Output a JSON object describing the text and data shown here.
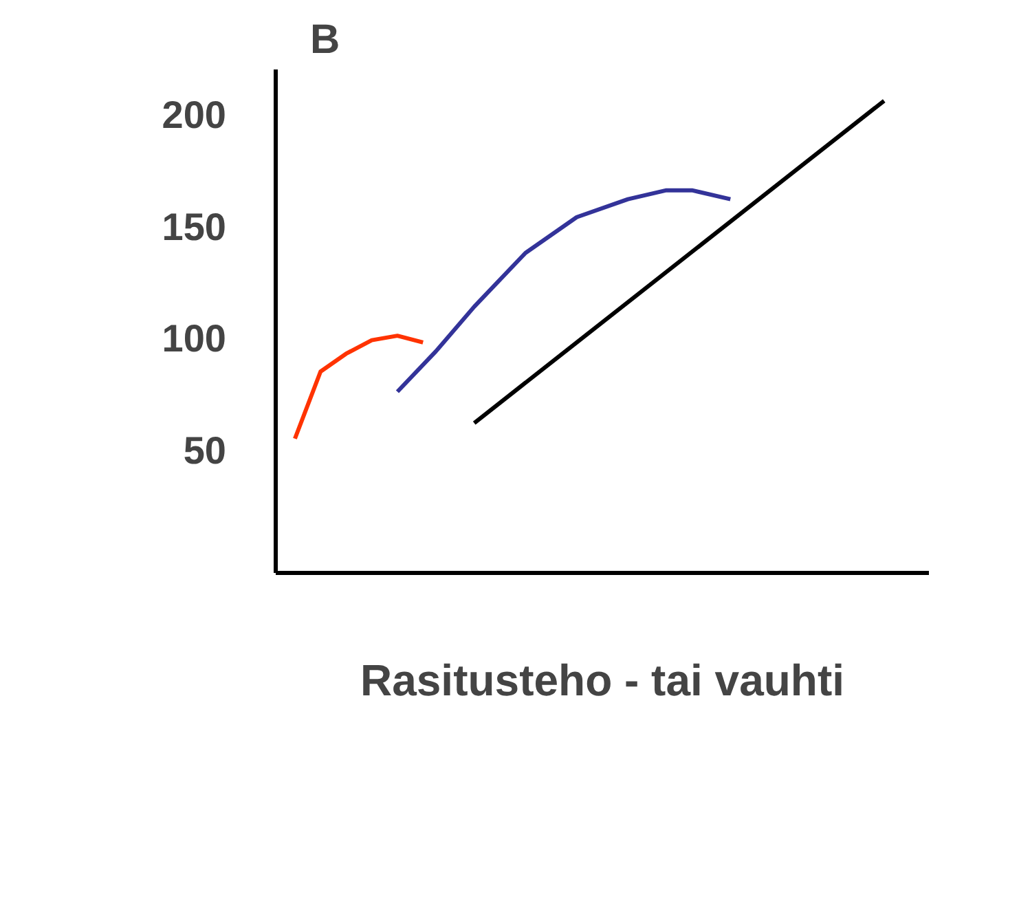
{
  "chart_data": {
    "type": "line",
    "title": "B",
    "xlabel": "Rasitusteho - tai vauhti",
    "ylim": [
      -5,
      220
    ],
    "yticks": [
      50,
      100,
      150,
      200
    ],
    "tick_labels": "y",
    "grid": false,
    "categories": [
      null,
      null,
      null,
      null,
      null,
      null,
      null,
      null,
      null,
      null,
      null,
      null,
      null,
      null,
      null,
      null,
      null,
      null,
      null,
      null,
      null,
      null,
      null,
      null,
      null,
      null,
      null,
      null,
      null,
      null,
      null,
      null,
      null,
      null,
      null,
      null,
      null,
      null,
      null,
      null,
      null,
      null,
      null,
      null,
      null,
      null,
      null,
      null,
      null,
      null,
      null
    ],
    "series": [
      {
        "color": "#ff3300",
        "values": [
          null,
          55,
          null,
          85,
          null,
          93,
          null,
          99,
          null,
          101,
          null,
          98,
          null,
          null,
          null,
          null,
          null,
          null,
          null,
          null,
          null,
          null,
          null,
          null,
          null,
          null,
          null,
          null,
          null,
          null,
          null,
          null,
          null,
          null,
          null,
          null,
          null,
          null,
          null,
          null,
          null,
          null,
          null,
          null,
          null,
          null,
          null,
          null,
          null,
          null,
          null
        ]
      },
      {
        "color": "#333399",
        "values": [
          null,
          null,
          null,
          null,
          null,
          null,
          null,
          null,
          null,
          76,
          null,
          null,
          94,
          null,
          null,
          114,
          null,
          null,
          null,
          138,
          null,
          null,
          null,
          154,
          null,
          null,
          null,
          162,
          null,
          null,
          166,
          null,
          166,
          null,
          null,
          162,
          null,
          null,
          null,
          null,
          null,
          null,
          null,
          null,
          null,
          null,
          null,
          null,
          null,
          null,
          null
        ]
      },
      {
        "color": "#000000",
        "values": [
          null,
          null,
          null,
          null,
          null,
          null,
          null,
          null,
          null,
          null,
          null,
          null,
          null,
          null,
          null,
          62,
          null,
          null,
          null,
          null,
          null,
          null,
          null,
          null,
          null,
          null,
          null,
          null,
          null,
          null,
          null,
          null,
          null,
          null,
          null,
          null,
          null,
          null,
          null,
          null,
          null,
          null,
          null,
          null,
          null,
          null,
          null,
          206,
          null,
          null,
          null
        ]
      }
    ]
  }
}
